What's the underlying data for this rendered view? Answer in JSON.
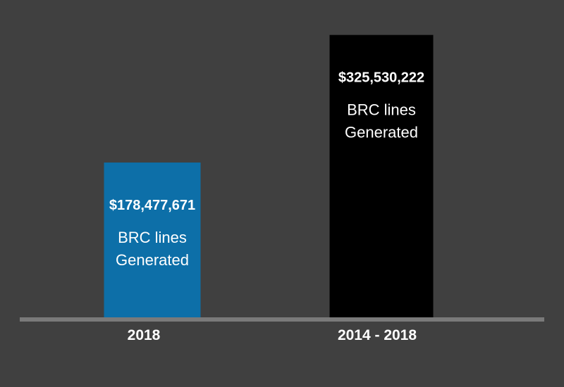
{
  "chart_data": {
    "type": "bar",
    "categories": [
      "2018",
      "2014 - 2018"
    ],
    "values": [
      178477671,
      325530222
    ],
    "value_labels": [
      "$178,477,671",
      "$325,530,222"
    ],
    "bar_text": "BRC lines Generated",
    "bar_text_lines": [
      "BRC lines",
      "Generated"
    ],
    "colors": [
      "#0d6fa8",
      "#000000"
    ],
    "background": "#404040",
    "axis_color": "#7a7a7a",
    "title": "",
    "xlabel": "",
    "ylabel": "",
    "ylim": [
      0,
      335000000
    ],
    "grid": false,
    "legend": "none"
  }
}
